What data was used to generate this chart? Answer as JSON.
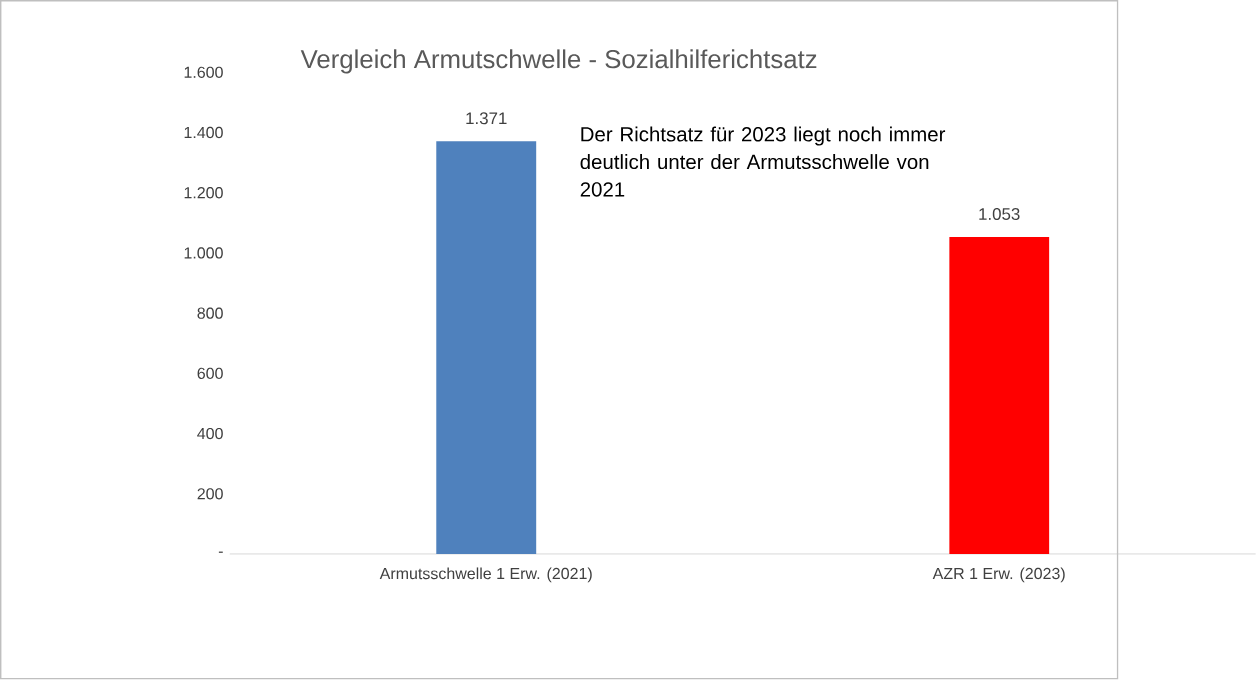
{
  "chart_data": {
    "type": "bar",
    "title": "Vergleich Armutschwelle - Sozialhilferichtsatz",
    "categories": [
      "Armutsschwelle 1 Erw. (2021)",
      "AZR 1 Erw. (2023)"
    ],
    "values": [
      1371,
      1053
    ],
    "value_labels": [
      "1.371",
      "1.053"
    ],
    "colors": [
      "#4f81bd",
      "#ff0000"
    ],
    "ylim": [
      0,
      1600
    ],
    "yticks": [
      {
        "value": 0,
        "label": "-"
      },
      {
        "value": 200,
        "label": "200"
      },
      {
        "value": 400,
        "label": "400"
      },
      {
        "value": 600,
        "label": "600"
      },
      {
        "value": 800,
        "label": "800"
      },
      {
        "value": 1000,
        "label": "1.000"
      },
      {
        "value": 1200,
        "label": "1.200"
      },
      {
        "value": 1400,
        "label": "1.400"
      },
      {
        "value": 1600,
        "label": "1.600"
      }
    ],
    "annotations": [
      "Der Richtsatz für 2023 liegt noch immer deutlich unter der Armutsschwelle von 2021"
    ]
  }
}
